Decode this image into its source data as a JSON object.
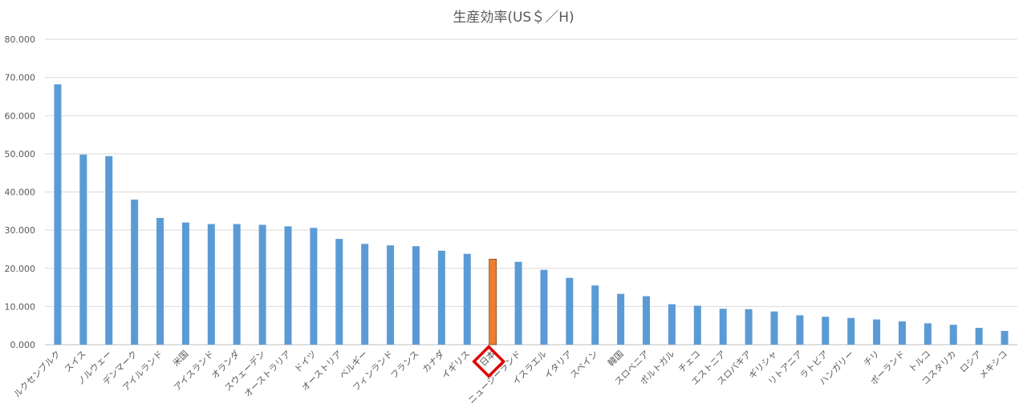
{
  "chart_data": {
    "type": "bar",
    "title": "生産効率(US＄／H)",
    "xlabel": "",
    "ylabel": "",
    "ylim": [
      0,
      80
    ],
    "yticks": [
      "0.000",
      "10.000",
      "20.000",
      "30.000",
      "40.000",
      "50.000",
      "60.000",
      "70.000",
      "80.000"
    ],
    "grid": true,
    "legend": "none",
    "bar_color": "#5b9bd5",
    "highlight_color": "#ed7d31",
    "highlight_box_color": "#e00000",
    "highlight_category": "日本",
    "categories": [
      "ルクセンブルク",
      "スイス",
      "ノルウェー",
      "デンマーク",
      "アイルランド",
      "米国",
      "アイスランド",
      "オランダ",
      "スウェーデン",
      "オーストラリア",
      "ドイツ",
      "オーストリア",
      "ベルギー",
      "フィンランド",
      "フランス",
      "カナダ",
      "イギリス",
      "日本",
      "ニュージーランド",
      "イスラエル",
      "イタリア",
      "スペイン",
      "韓国",
      "スロベニア",
      "ポルトガル",
      "チェコ",
      "エストニア",
      "スロバキア",
      "ギリシャ",
      "リトアニア",
      "ラトビア",
      "ハンガリー",
      "チリ",
      "ポーランド",
      "トルコ",
      "コスタリカ",
      "ロシア",
      "メキシコ"
    ],
    "values": [
      68.2,
      49.8,
      49.4,
      38.0,
      33.2,
      32.0,
      31.6,
      31.6,
      31.4,
      31.0,
      30.6,
      27.7,
      26.4,
      26.0,
      25.8,
      24.6,
      23.8,
      22.4,
      21.7,
      19.6,
      17.5,
      15.5,
      13.3,
      12.7,
      10.6,
      10.2,
      9.4,
      9.3,
      8.7,
      7.7,
      7.3,
      7.0,
      6.6,
      6.1,
      5.6,
      5.2,
      4.4,
      3.6
    ]
  }
}
